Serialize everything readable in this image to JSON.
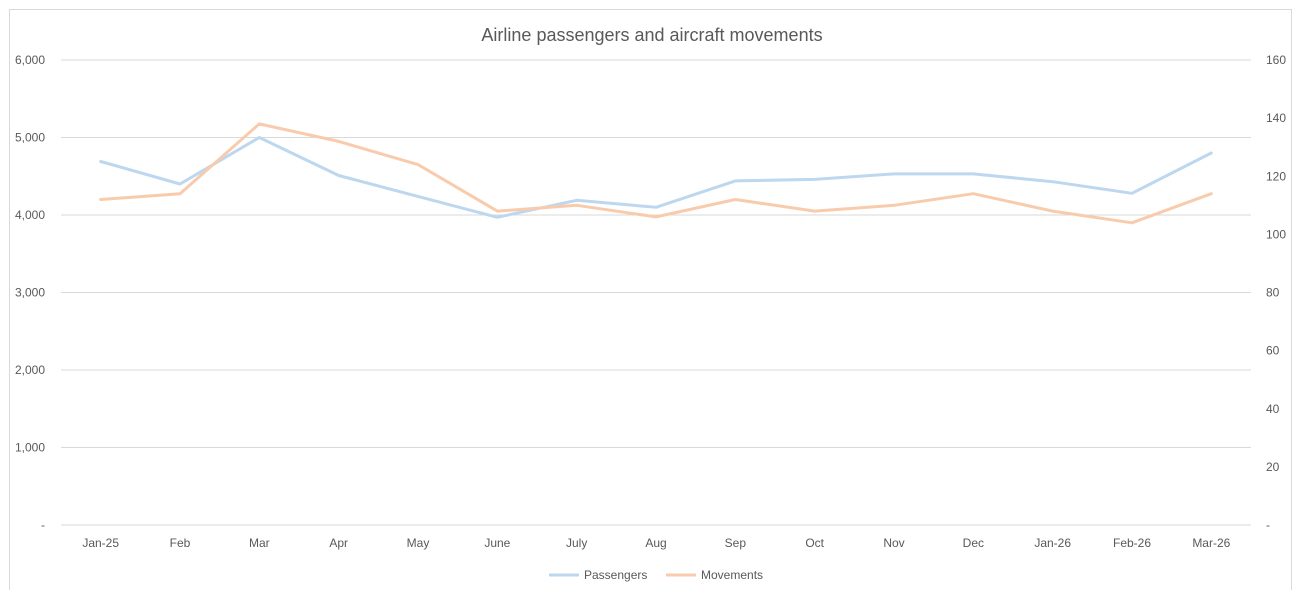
{
  "chart_data": {
    "type": "line",
    "title": "Airline passengers and aircraft movements",
    "categories": [
      "Jan-25",
      "Feb",
      "Mar",
      "Apr",
      "May",
      "June",
      "July",
      "Aug",
      "Sep",
      "Oct",
      "Nov",
      "Dec",
      "Jan-26",
      "Feb-26",
      "Mar-26"
    ],
    "series": [
      {
        "name": "Passengers",
        "axis": "left",
        "color": "#bdd7ee",
        "values": [
          4690,
          4400,
          5000,
          4510,
          4240,
          3970,
          4190,
          4100,
          4440,
          4460,
          4530,
          4530,
          4430,
          4280,
          4800
        ]
      },
      {
        "name": "Movements",
        "axis": "right",
        "color": "#f8cbad",
        "values": [
          112,
          114,
          138,
          132,
          124,
          108,
          110,
          106,
          112,
          108,
          110,
          114,
          108,
          104,
          114
        ]
      }
    ],
    "y_left": {
      "min": 0,
      "max": 6000,
      "ticks": [
        0,
        1000,
        2000,
        3000,
        4000,
        5000,
        6000
      ],
      "tick_labels": [
        "-",
        "1,000",
        "2,000",
        "3,000",
        "4,000",
        "5,000",
        "6,000"
      ]
    },
    "y_right": {
      "min": 0,
      "max": 160,
      "ticks": [
        0,
        20,
        40,
        60,
        80,
        100,
        120,
        140,
        160
      ],
      "tick_labels": [
        "-",
        "20",
        "40",
        "60",
        "80",
        "100",
        "120",
        "140",
        "160"
      ]
    },
    "grid": true,
    "legend_position": "bottom",
    "gridline_color": "#d9d9d9"
  }
}
